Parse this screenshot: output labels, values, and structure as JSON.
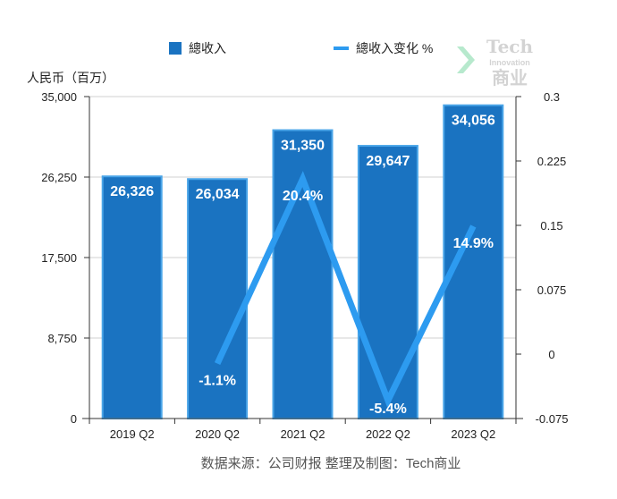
{
  "chart_data": {
    "type": "bar",
    "categories": [
      "2019 Q2",
      "2020 Q2",
      "2021 Q2",
      "2022 Q2",
      "2023 Q2"
    ],
    "series": [
      {
        "name": "總收入",
        "type": "bar",
        "axis": "left",
        "values": [
          26326,
          26034,
          31350,
          29647,
          34056
        ],
        "labels": [
          "26,326",
          "26,034",
          "31,350",
          "29,647",
          "34,056"
        ],
        "color": "#1a73c1"
      },
      {
        "name": "總收入变化 %",
        "type": "line",
        "axis": "right",
        "values": [
          null,
          -0.011,
          0.204,
          -0.054,
          0.149
        ],
        "labels": [
          "",
          "-1.1%",
          "20.4%",
          "-5.4%",
          "14.9%"
        ],
        "color": "#2d9bf0"
      }
    ],
    "ylabel": "人民币（百万）",
    "ylim": [
      0,
      35000
    ],
    "y_ticks": [
      0,
      8750,
      17500,
      26250,
      35000
    ],
    "y_tick_labels": [
      "0",
      "8,750",
      "17,500",
      "26,250",
      "35,000"
    ],
    "y2lim": [
      -0.075,
      0.3
    ],
    "y2_ticks": [
      -0.075,
      0,
      0.075,
      0.15,
      0.225,
      0.3
    ],
    "y2_tick_labels": [
      "-0.075",
      "0",
      "0.075",
      "0.15",
      "0.225",
      "0.3"
    ],
    "grid": true,
    "legend_position": "top-center"
  },
  "source": "数据来源：公司财报 整理及制图：Tech商业",
  "watermark": {
    "line1": "Tech",
    "line2": "Innovation",
    "line3": "商业"
  }
}
